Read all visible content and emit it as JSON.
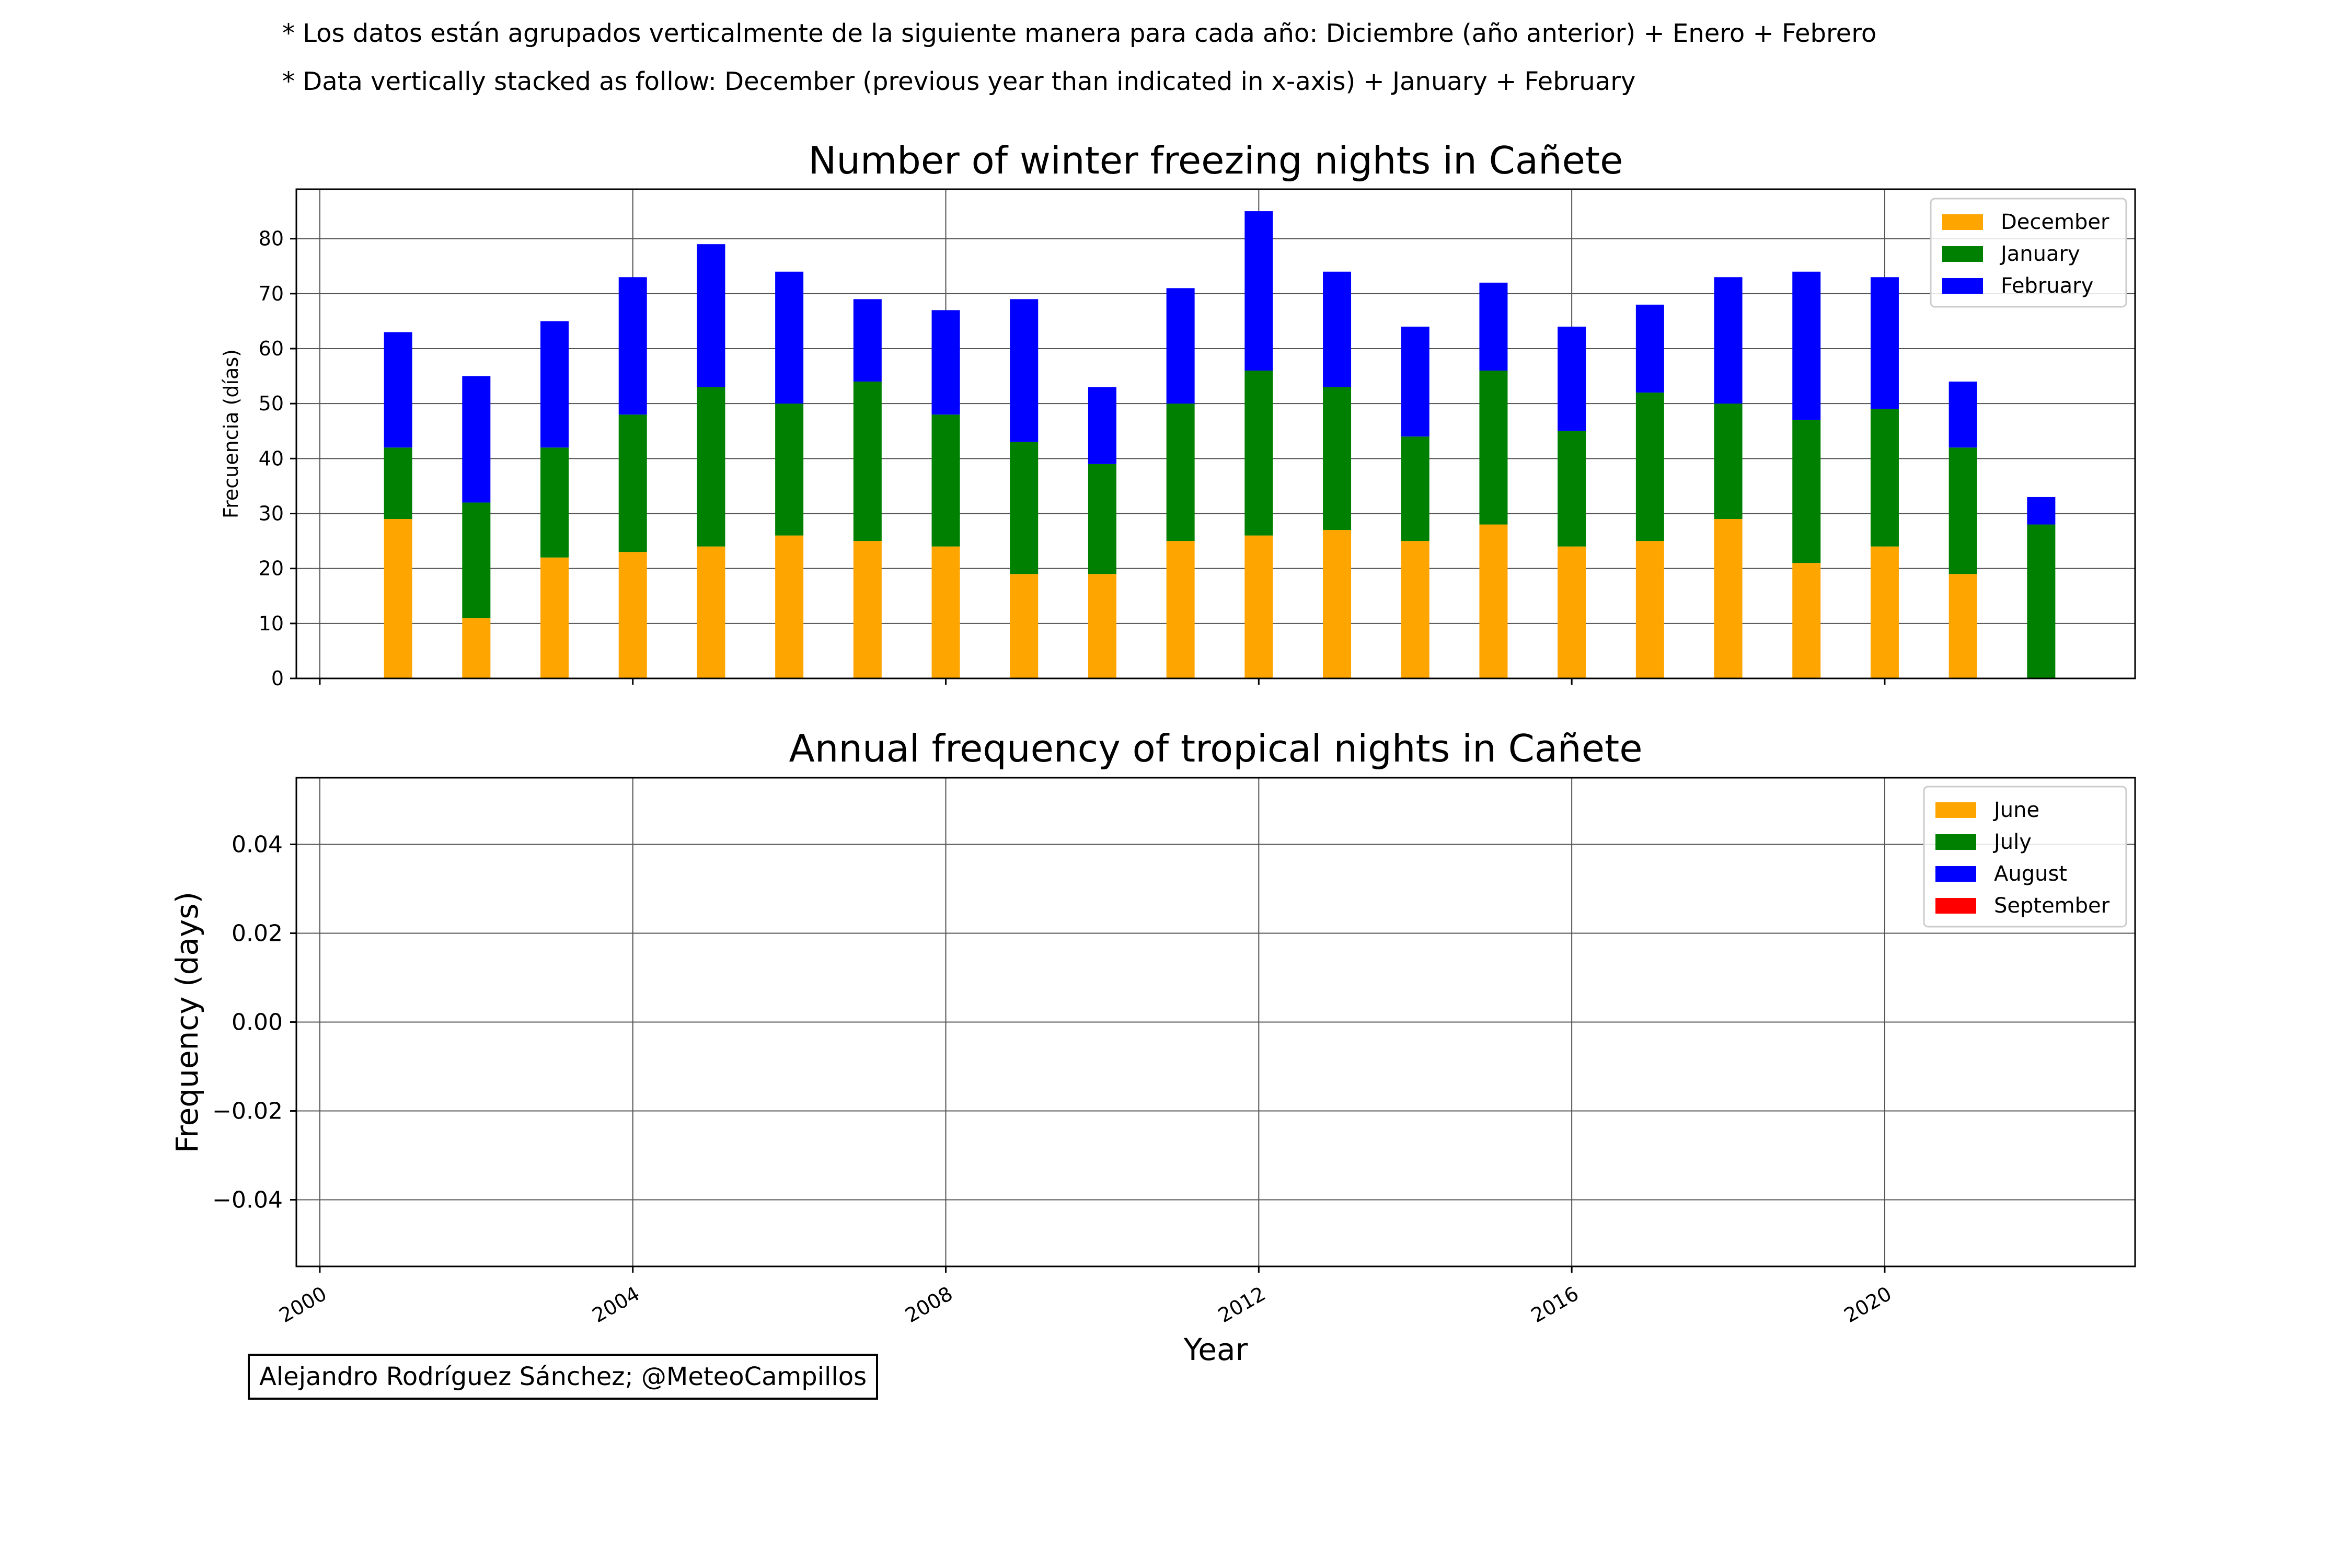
{
  "notes": {
    "es": "* Los datos están agrupados verticalmente de la siguiente manera para cada año: Diciembre (año anterior) + Enero  + Febrero",
    "en": "* Data vertically stacked as follow: December (previous year than indicated in x-axis) + January  + February"
  },
  "credit": "Alejandro Rodríguez Sánchez; @MeteoCampillos",
  "xlabel": "Year",
  "chart_data": [
    {
      "type": "bar",
      "stacked": true,
      "title": "Number of winter freezing nights in Cañete",
      "ylabel": "Frecuencia (días)",
      "ylim": [
        0,
        89
      ],
      "xlim": [
        1999.7,
        2023.2
      ],
      "yticks": [
        0,
        10,
        20,
        30,
        40,
        50,
        60,
        70,
        80
      ],
      "grid": true,
      "legend_position": "top-right",
      "x": [
        2001,
        2002,
        2003,
        2004,
        2005,
        2006,
        2007,
        2008,
        2009,
        2010,
        2011,
        2012,
        2013,
        2014,
        2015,
        2016,
        2017,
        2018,
        2019,
        2020,
        2021,
        2022
      ],
      "series": [
        {
          "name": "December",
          "color": "#ffa500",
          "values": [
            29,
            11,
            22,
            23,
            24,
            26,
            25,
            24,
            19,
            19,
            25,
            26,
            27,
            25,
            28,
            24,
            25,
            29,
            21,
            24,
            19,
            0
          ]
        },
        {
          "name": "January",
          "color": "#008000",
          "values": [
            13,
            21,
            20,
            25,
            29,
            24,
            29,
            24,
            24,
            20,
            25,
            30,
            26,
            19,
            28,
            21,
            27,
            21,
            26,
            25,
            23,
            28
          ]
        },
        {
          "name": "February",
          "color": "#0000ff",
          "values": [
            21,
            23,
            23,
            25,
            26,
            24,
            15,
            19,
            26,
            14,
            21,
            29,
            21,
            20,
            16,
            19,
            16,
            23,
            27,
            24,
            12,
            5
          ]
        }
      ]
    },
    {
      "type": "bar",
      "stacked": true,
      "title": "Annual frequency of tropical nights in Cañete",
      "ylabel": "Frequency (days)",
      "xlabel": "Year",
      "ylim": [
        -0.055,
        0.055
      ],
      "xlim": [
        1999.7,
        2023.2
      ],
      "yticks": [
        -0.04,
        -0.02,
        0.0,
        0.02,
        0.04
      ],
      "ytick_labels": [
        "−0.04",
        "−0.02",
        "0.00",
        "0.02",
        "0.04"
      ],
      "xticks": [
        2000,
        2004,
        2008,
        2012,
        2016,
        2020
      ],
      "xtick_labels": [
        "2000",
        "2004",
        "2008",
        "2012",
        "2016",
        "2020"
      ],
      "grid": true,
      "legend_position": "top-right",
      "series": [
        {
          "name": "June",
          "color": "#ffa500",
          "values": []
        },
        {
          "name": "July",
          "color": "#008000",
          "values": []
        },
        {
          "name": "August",
          "color": "#0000ff",
          "values": []
        },
        {
          "name": "September",
          "color": "#ff0000",
          "values": []
        }
      ]
    }
  ]
}
